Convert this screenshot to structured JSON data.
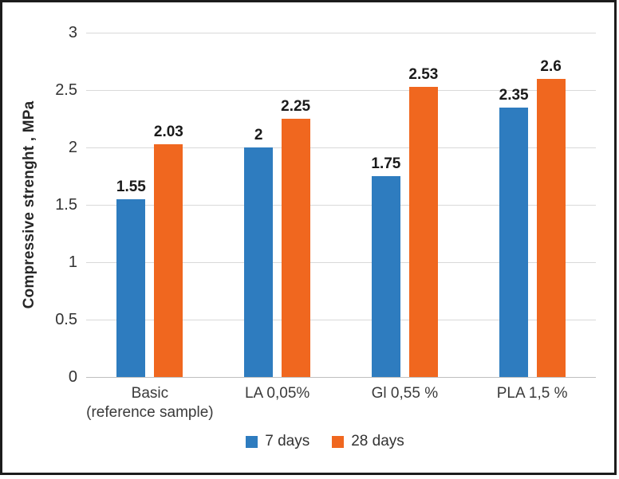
{
  "chart_data": {
    "type": "bar",
    "title": "",
    "ylabel": "Compressive strenght , MPa",
    "xlabel": "",
    "ylim": [
      0,
      3
    ],
    "ytick_step": 0.5,
    "yticks": [
      "3",
      "2.5",
      "2",
      "1.5",
      "1",
      "0.5",
      "0"
    ],
    "grid": true,
    "legend_position": "bottom",
    "categories": [
      [
        "Basic",
        "(reference sample)"
      ],
      [
        "LA 0,05%"
      ],
      [
        "Gl 0,55 %"
      ],
      [
        "PLA 1,5 %"
      ]
    ],
    "series": [
      {
        "name": "7 days",
        "color": "#2e7cbf",
        "values": [
          1.55,
          2,
          1.75,
          2.35
        ],
        "labels": [
          "1.55",
          "2",
          "1.75",
          "2.35"
        ]
      },
      {
        "name": "28 days",
        "color": "#f0671f",
        "values": [
          2.03,
          2.25,
          2.53,
          2.6
        ],
        "labels": [
          "2.03",
          "2.25",
          "2.53",
          "2.6"
        ]
      }
    ]
  },
  "colors": {
    "gridline": "#d9d9d9",
    "axis_line": "#bfbfbf",
    "tick_text": "#333333",
    "data_label_text": "#1a1a1a",
    "frame_border": "#1c1c1c"
  }
}
